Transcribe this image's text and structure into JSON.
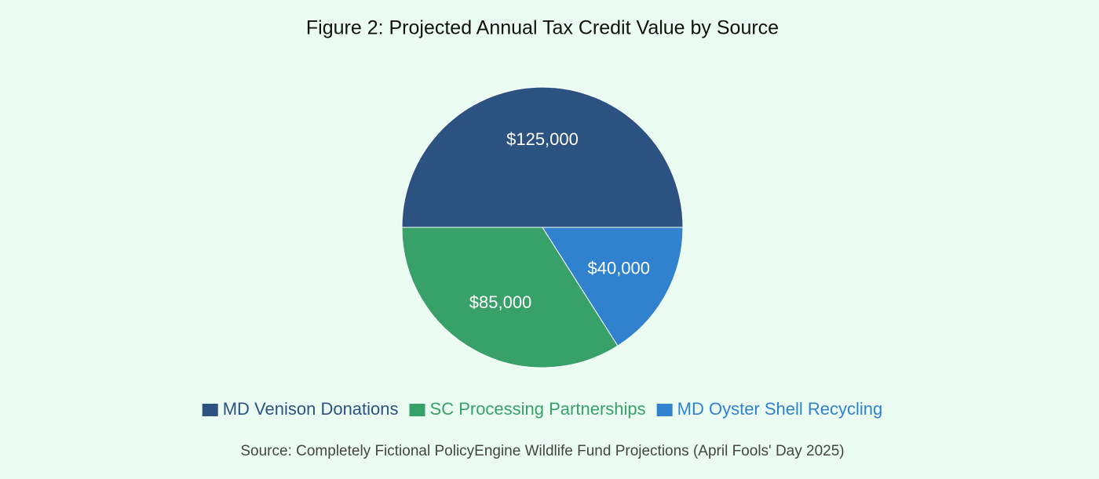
{
  "chart_data": {
    "type": "pie",
    "title": "Figure 2: Projected Annual Tax Credit Value by Source",
    "categories": [
      "MD Venison Donations",
      "SC Processing Partnerships",
      "MD Oyster Shell Recycling"
    ],
    "values": [
      125000,
      85000,
      40000
    ],
    "value_labels": [
      "$125,000",
      "$85,000",
      "$40,000"
    ],
    "colors": [
      "#2c5282",
      "#38a169",
      "#3182ce"
    ],
    "legend": "bottom",
    "source": "Source: Completely Fictional PolicyEngine Wildlife Fund Projections (April Fools' Day 2025)"
  }
}
